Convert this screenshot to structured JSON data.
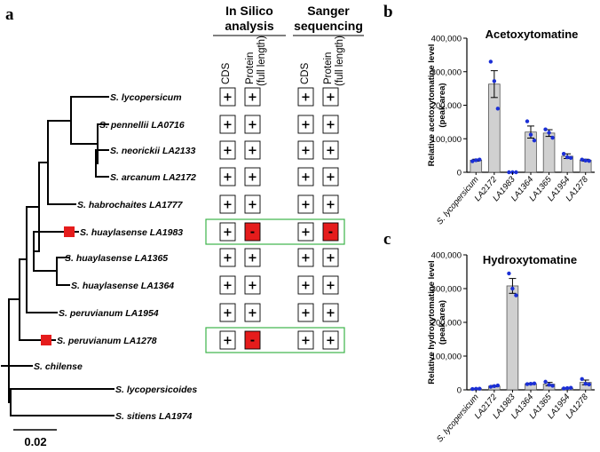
{
  "panel_a": {
    "letter": "a",
    "header_insilico": [
      "In Silico",
      "analysis"
    ],
    "header_sanger": [
      "Sanger",
      "sequencing"
    ],
    "col_cds": "CDS",
    "col_protein": [
      "Protein",
      "(full length)"
    ],
    "scale_label": "0.02",
    "plus": "+",
    "minus": "-",
    "highlight_color": "#3cb34a",
    "negative_color": "#e51c1c",
    "species": [
      {
        "name": "S. lycopersicum",
        "marked": false,
        "cells": [
          "+",
          "+",
          "+",
          "+"
        ]
      },
      {
        "name": "S. pennellii LA0716",
        "marked": false,
        "cells": [
          "+",
          "+",
          "+",
          "+"
        ]
      },
      {
        "name": "S. neorickii LA2133",
        "marked": false,
        "cells": [
          "+",
          "+",
          "+",
          "+"
        ]
      },
      {
        "name": "S. arcanum LA2172",
        "marked": false,
        "cells": [
          "+",
          "+",
          "+",
          "+"
        ]
      },
      {
        "name": "S. habrochaites LA1777",
        "marked": false,
        "cells": [
          "+",
          "+",
          "+",
          "+"
        ]
      },
      {
        "name": "S. huaylasense LA1983",
        "marked": true,
        "cells": [
          "+",
          "-",
          "+",
          "-"
        ]
      },
      {
        "name": "S. huaylasense LA1365",
        "marked": false,
        "cells": [
          "+",
          "+",
          "+",
          "+"
        ]
      },
      {
        "name": "S. huaylasense LA1364",
        "marked": false,
        "cells": [
          "+",
          "+",
          "+",
          "+"
        ]
      },
      {
        "name": "S. peruvianum LA1954",
        "marked": false,
        "cells": [
          "+",
          "+",
          "+",
          "+"
        ]
      },
      {
        "name": "S. peruvianum LA1278",
        "marked": true,
        "cells": [
          "+",
          "-",
          "+",
          "+"
        ]
      },
      {
        "name": "S. chilense",
        "marked": false,
        "cells": null
      },
      {
        "name": "S. lycopersicoides",
        "marked": false,
        "cells": null
      },
      {
        "name": "S. sitiens LA1974",
        "marked": false,
        "cells": null
      }
    ]
  },
  "chart_data": [
    {
      "type": "bar",
      "panel": "b",
      "title": "Acetoxytomatine",
      "ylabel": [
        "Relative  acetoxytomatine  level",
        "(peak area)"
      ],
      "ylim": [
        0,
        400000
      ],
      "yticks": [
        "0",
        "100,000",
        "200,000",
        "300,000",
        "400,000"
      ],
      "categories": [
        "S. lycopersicum",
        "LA2172",
        "LA1983",
        "LA1364",
        "LA1365",
        "LA1954",
        "LA1278"
      ],
      "values": [
        36000,
        263000,
        0,
        120000,
        117000,
        48000,
        36000
      ],
      "errors": [
        3000,
        40000,
        0,
        18000,
        10000,
        7000,
        3000
      ],
      "points": [
        [
          33000,
          36000,
          38000
        ],
        [
          330000,
          272000,
          190000
        ],
        [
          0,
          0,
          0
        ],
        [
          152000,
          112000,
          95000
        ],
        [
          128000,
          118000,
          103000
        ],
        [
          55000,
          45000,
          43000
        ],
        [
          38000,
          35000,
          34000
        ]
      ],
      "bar_color": "#d0d0d0",
      "point_color": "#1b2fd6"
    },
    {
      "type": "bar",
      "panel": "c",
      "title": "Hydroxytomatine",
      "ylabel": [
        "Relative  hydroxytomatine  level",
        "(peak area)"
      ],
      "ylim": [
        0,
        400000
      ],
      "yticks": [
        "0",
        "100,000",
        "200,000",
        "300,000",
        "400,000"
      ],
      "categories": [
        "S. lycopersicum",
        "LA2172",
        "LA1983",
        "LA1364",
        "LA1365",
        "LA1954",
        "LA1278"
      ],
      "values": [
        3000,
        11000,
        308000,
        18000,
        17000,
        5000,
        22000
      ],
      "errors": [
        1000,
        2000,
        22000,
        2000,
        5000,
        1000,
        7000
      ],
      "points": [
        [
          2500,
          3000,
          3500
        ],
        [
          9000,
          11000,
          13000
        ],
        [
          345000,
          300000,
          280000
        ],
        [
          17000,
          18000,
          19000
        ],
        [
          24000,
          15000,
          12000
        ],
        [
          4000,
          5000,
          6000
        ],
        [
          32000,
          18000,
          16000
        ]
      ],
      "bar_color": "#d0d0d0",
      "point_color": "#1b2fd6"
    }
  ]
}
